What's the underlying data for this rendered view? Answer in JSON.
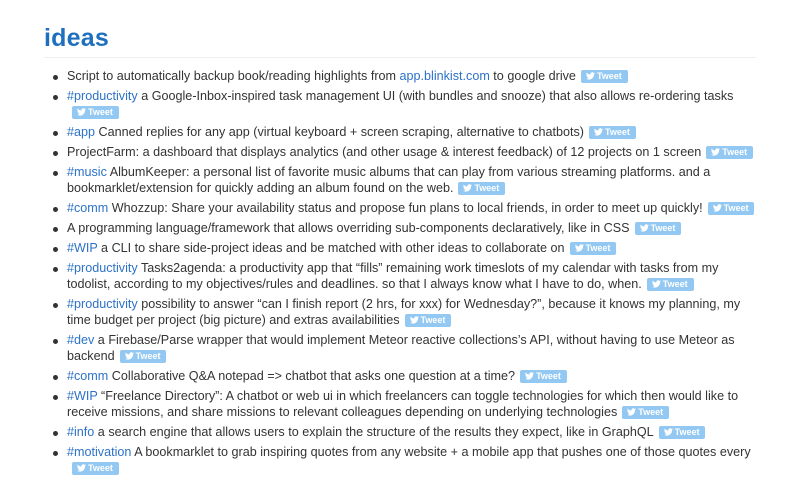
{
  "page": {
    "title": "ideas",
    "tweet_label": "Tweet",
    "accent_color": "#1f6fbf",
    "link_color": "#2c72c7",
    "tweet_button_color": "#92c8f2"
  },
  "ideas": [
    {
      "tag": "",
      "pre": "Script to automatically backup book/reading highlights from ",
      "link": "app.blinkist.com",
      "post": " to google drive"
    },
    {
      "tag": "#productivity",
      "pre": " a Google-Inbox-inspired task management UI (with bundles and snooze) that also allows re-ordering tasks",
      "link": "",
      "post": ""
    },
    {
      "tag": "#app",
      "pre": " Canned replies for any app (virtual keyboard + screen scraping, alternative to chatbots)",
      "link": "",
      "post": ""
    },
    {
      "tag": "",
      "pre": "ProjectFarm: a dashboard that displays analytics (and other usage & interest feedback) of 12 projects on 1 screen",
      "link": "",
      "post": ""
    },
    {
      "tag": "#music",
      "pre": " AlbumKeeper: a personal list of favorite music albums that can play from various streaming platforms. and a bookmarklet/extension for quickly adding an album found on the web.",
      "link": "",
      "post": ""
    },
    {
      "tag": "#comm",
      "pre": " Whozzup: Share your availability status and propose fun plans to local friends, in order to meet up quickly!",
      "link": "",
      "post": ""
    },
    {
      "tag": "",
      "pre": "A programming language/framework that allows overriding sub-components declaratively, like in CSS",
      "link": "",
      "post": ""
    },
    {
      "tag": "#WIP",
      "pre": " a CLI to share side-project ideas and be matched with other ideas to collaborate on",
      "link": "",
      "post": ""
    },
    {
      "tag": "#productivity",
      "pre": " Tasks2agenda: a productivity app that “fills” remaining work timeslots of my calendar with tasks from my todolist, according to my objectives/rules and deadlines. so that I always know what I have to do, when.",
      "link": "",
      "post": ""
    },
    {
      "tag": "#productivity",
      "pre": " possibility to answer “can I finish report (2 hrs, for xxx) for Wednesday?”, because it knows my planning, my time budget per project (big picture) and extras availabilities",
      "link": "",
      "post": ""
    },
    {
      "tag": "#dev",
      "pre": " a Firebase/Parse wrapper that would implement Meteor reactive collections’s API, without having to use Meteor as backend",
      "link": "",
      "post": ""
    },
    {
      "tag": "#comm",
      "pre": " Collaborative Q&A notepad => chatbot that asks one question at a time?",
      "link": "",
      "post": ""
    },
    {
      "tag": "#WIP",
      "pre": " “Freelance Directory”: A chatbot or web ui in which freelancers can toggle technologies for which then would like to receive missions, and share missions to relevant colleagues depending on underlying technologies",
      "link": "",
      "post": ""
    },
    {
      "tag": "#info",
      "pre": " a search engine that allows users to explain the structure of the results they expect, like in GraphQL",
      "link": "",
      "post": ""
    },
    {
      "tag": "#motivation",
      "pre": " A bookmarklet to grab inspiring quotes from any website + a mobile app that pushes one of those quotes every",
      "link": "",
      "post": ""
    }
  ]
}
